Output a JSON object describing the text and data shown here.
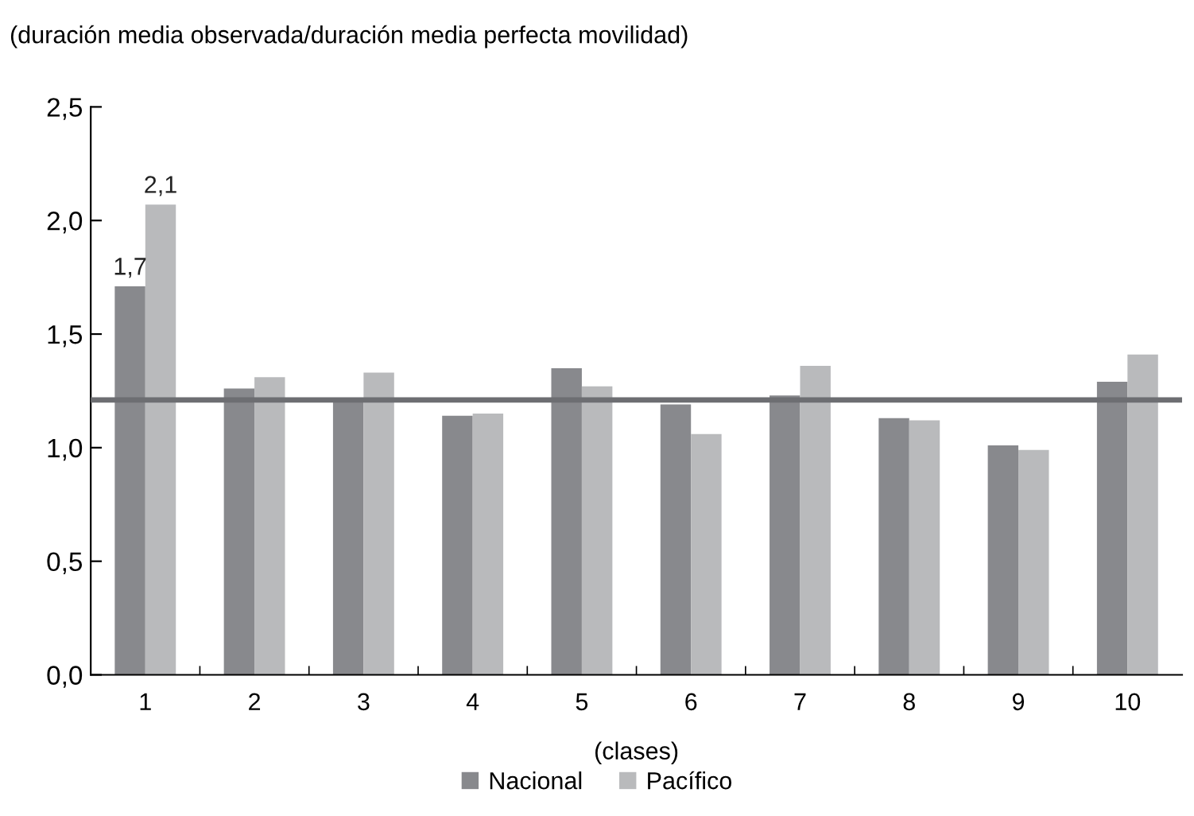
{
  "chart_data": {
    "type": "bar",
    "subtitle": "(duración media observada/duración media perfecta movilidad)",
    "xlabel": "(clases)",
    "categories": [
      "1",
      "2",
      "3",
      "4",
      "5",
      "6",
      "7",
      "8",
      "9",
      "10"
    ],
    "series": [
      {
        "name": "Nacional",
        "color": "#88898d",
        "values": [
          1.71,
          1.26,
          1.21,
          1.14,
          1.35,
          1.19,
          1.23,
          1.13,
          1.01,
          1.29
        ],
        "value_labels": [
          "1,7",
          null,
          null,
          null,
          null,
          null,
          null,
          null,
          null,
          null
        ]
      },
      {
        "name": "Pacífico",
        "color": "#b9babc",
        "values": [
          2.07,
          1.31,
          1.33,
          1.15,
          1.27,
          1.06,
          1.36,
          1.12,
          0.99,
          1.41
        ],
        "value_labels": [
          "2,1",
          null,
          null,
          null,
          null,
          null,
          null,
          null,
          null,
          null
        ]
      }
    ],
    "ylim": [
      0,
      2.5
    ],
    "yticks": [
      {
        "value": 0,
        "label": "0,0"
      },
      {
        "value": 0.5,
        "label": "0,5"
      },
      {
        "value": 1.0,
        "label": "1,0"
      },
      {
        "value": 1.5,
        "label": "1,5"
      },
      {
        "value": 2.0,
        "label": "2,0"
      },
      {
        "value": 2.5,
        "label": "2,5"
      }
    ],
    "ref_lines": [
      {
        "axis": "y",
        "value": 1.21,
        "color": "#6d6e72"
      }
    ],
    "grid": false,
    "legend": "bottom"
  }
}
